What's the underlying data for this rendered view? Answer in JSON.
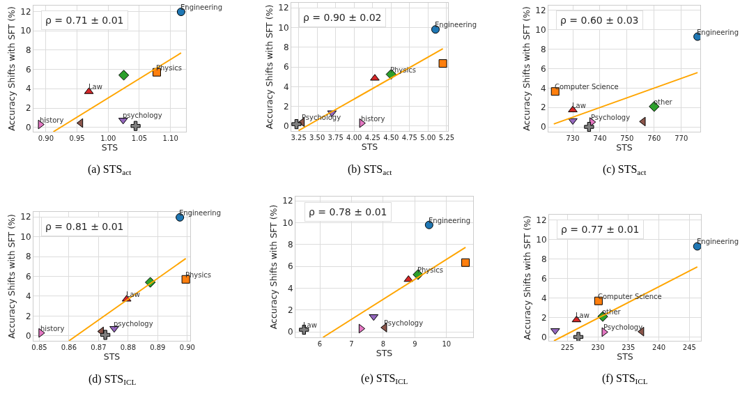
{
  "chart_data": [
    {
      "type": "scatter",
      "title": "(a) STS$_{act}$",
      "xlabel": "STS",
      "ylabel": "Accuracy Shifts with SFT (%)",
      "grid": true,
      "xlim": [
        0.88,
        1.125
      ],
      "xticks": [
        {
          "value": 0.9,
          "label": "0.90"
        },
        {
          "value": 0.95,
          "label": "0.95"
        },
        {
          "value": 1.0,
          "label": "1.00"
        },
        {
          "value": 1.05,
          "label": "1.05"
        },
        {
          "value": 1.1,
          "label": "1.10"
        }
      ],
      "ylim": [
        -0.45,
        12.6
      ],
      "yticks": [
        0,
        2,
        4,
        6,
        8,
        10,
        12
      ],
      "series": [
        {
          "color": "#1f77b4",
          "marker": "circle",
          "x": [
            1.117
          ],
          "values": [
            11.95
          ]
        },
        {
          "color": "#ff7f0e",
          "marker": "square",
          "x": [
            1.078
          ],
          "values": [
            5.7
          ]
        },
        {
          "color": "#2ca02c",
          "marker": "diamond",
          "x": [
            1.025
          ],
          "values": [
            5.4
          ]
        },
        {
          "color": "#d62728",
          "marker": "triangle",
          "x": [
            0.969
          ],
          "values": [
            3.7
          ]
        },
        {
          "color": "#9467bd",
          "marker": "triangle-down",
          "x": [
            1.024
          ],
          "values": [
            0.75
          ]
        },
        {
          "color": "#8c564b",
          "marker": "triangle-left",
          "x": [
            0.956
          ],
          "values": [
            0.45
          ]
        },
        {
          "color": "#e377c2",
          "marker": "triangle-right",
          "x": [
            0.891
          ],
          "values": [
            0.3
          ]
        },
        {
          "color": "#7f7f7f",
          "marker": "cross",
          "x": [
            1.044
          ],
          "values": [
            0.15
          ]
        },
        {
          "type": "line",
          "color": "#ffa500",
          "marker": "none",
          "x": [
            0.912,
            1.117
          ],
          "values": [
            -0.45,
            7.7
          ]
        }
      ],
      "annotations": [
        "ρ = 0.71 ± 0.01",
        {
          "text": "Engineering",
          "x": 1.117,
          "y": 11.95
        },
        {
          "text": "Physics",
          "x": 1.078,
          "y": 5.7
        },
        {
          "text": "Law",
          "x": 0.969,
          "y": 3.7
        },
        {
          "text": "psychology",
          "x": 1.024,
          "y": 0.75
        },
        {
          "text": "history",
          "x": 0.891,
          "y": 0.3
        }
      ]
    },
    {
      "type": "scatter",
      "title": "(b) STS$_{act}$",
      "xlabel": "STS",
      "ylabel": "Accuracy Shifts with SFT (%)",
      "grid": true,
      "xlim": [
        3.15,
        5.27
      ],
      "xticks": [
        {
          "value": 3.25,
          "label": "3.25"
        },
        {
          "value": 3.5,
          "label": "3.50"
        },
        {
          "value": 3.75,
          "label": "3.75"
        },
        {
          "value": 4.0,
          "label": "4.00"
        },
        {
          "value": 4.25,
          "label": "4.25"
        },
        {
          "value": 4.5,
          "label": "4.50"
        },
        {
          "value": 4.75,
          "label": "4.75"
        },
        {
          "value": 5.0,
          "label": "5.00"
        },
        {
          "value": 5.25,
          "label": "5.25"
        }
      ],
      "ylim": [
        -0.5,
        12.5
      ],
      "yticks": [
        0,
        2,
        4,
        6,
        8,
        10,
        12
      ],
      "series": [
        {
          "color": "#1f77b4",
          "marker": "circle",
          "x": [
            5.1
          ],
          "values": [
            9.8
          ]
        },
        {
          "color": "#ff7f0e",
          "marker": "square",
          "x": [
            5.2
          ],
          "values": [
            6.35
          ]
        },
        {
          "color": "#2ca02c",
          "marker": "diamond",
          "x": [
            4.5
          ],
          "values": [
            5.25
          ]
        },
        {
          "color": "#d62728",
          "marker": "triangle",
          "x": [
            4.28
          ],
          "values": [
            4.85
          ]
        },
        {
          "color": "#9467bd",
          "marker": "triangle-down",
          "x": [
            3.7
          ],
          "values": [
            1.35
          ]
        },
        {
          "color": "#8c564b",
          "marker": "triangle-left",
          "x": [
            3.3
          ],
          "values": [
            0.4
          ]
        },
        {
          "color": "#e377c2",
          "marker": "triangle-right",
          "x": [
            4.1
          ],
          "values": [
            0.3
          ]
        },
        {
          "color": "#7f7f7f",
          "marker": "cross",
          "x": [
            3.22
          ],
          "values": [
            0.2
          ]
        },
        {
          "type": "line",
          "color": "#ffa500",
          "marker": "none",
          "x": [
            3.25,
            5.2
          ],
          "values": [
            -0.45,
            7.85
          ]
        }
      ],
      "annotations": [
        "ρ = 0.90 ± 0.02",
        {
          "text": "Engineering",
          "x": 5.1,
          "y": 9.8
        },
        {
          "text": "Physics",
          "x": 4.5,
          "y": 5.25
        },
        {
          "text": "Psychology",
          "x": 3.3,
          "y": 0.4
        },
        {
          "text": "history",
          "x": 4.1,
          "y": 0.3
        }
      ]
    },
    {
      "type": "scatter",
      "title": "(c) STS$_{act}$",
      "xlabel": "STS",
      "ylabel": "Accuracy Shifts with SFT (%)",
      "grid": true,
      "xlim": [
        721,
        777
      ],
      "xticks": [
        730,
        740,
        750,
        760,
        770
      ],
      "ylim": [
        -0.5,
        12.5
      ],
      "yticks": [
        0,
        2,
        4,
        6,
        8,
        10,
        12
      ],
      "series": [
        {
          "color": "#1f77b4",
          "marker": "circle",
          "x": [
            776
          ],
          "values": [
            9.3
          ]
        },
        {
          "color": "#ff7f0e",
          "marker": "square",
          "x": [
            723.5
          ],
          "values": [
            3.65
          ]
        },
        {
          "color": "#2ca02c",
          "marker": "diamond",
          "x": [
            760
          ],
          "values": [
            2.1
          ]
        },
        {
          "color": "#d62728",
          "marker": "triangle",
          "x": [
            730
          ],
          "values": [
            1.75
          ]
        },
        {
          "color": "#9467bd",
          "marker": "triangle-down",
          "x": [
            730
          ],
          "values": [
            0.65
          ]
        },
        {
          "color": "#8c564b",
          "marker": "triangle-left",
          "x": [
            756
          ],
          "values": [
            0.55
          ]
        },
        {
          "color": "#e377c2",
          "marker": "triangle-right",
          "x": [
            737
          ],
          "values": [
            0.5
          ]
        },
        {
          "color": "#7f7f7f",
          "marker": "cross",
          "x": [
            736
          ],
          "values": [
            0.0
          ]
        },
        {
          "type": "line",
          "color": "#ffa500",
          "marker": "none",
          "x": [
            723,
            776
          ],
          "values": [
            0.3,
            5.6
          ]
        }
      ],
      "annotations": [
        "ρ = 0.60 ± 0.03",
        {
          "text": "Engineering",
          "x": 776,
          "y": 9.3
        },
        {
          "text": "Computer Science",
          "x": 723.5,
          "y": 3.65
        },
        {
          "text": "Law",
          "x": 730,
          "y": 1.75
        },
        {
          "text": "other",
          "x": 760,
          "y": 2.1
        },
        {
          "text": "Psychology",
          "x": 737,
          "y": 0.5
        }
      ]
    },
    {
      "type": "scatter",
      "title": "(d) STS$_{ICL}$",
      "xlabel": "STS",
      "ylabel": "Accuracy Shifts with SFT (%)",
      "grid": true,
      "xlim": [
        0.848,
        0.901
      ],
      "xticks": [
        {
          "value": 0.85,
          "label": "0.85"
        },
        {
          "value": 0.86,
          "label": "0.86"
        },
        {
          "value": 0.87,
          "label": "0.87"
        },
        {
          "value": 0.88,
          "label": "0.88"
        },
        {
          "value": 0.89,
          "label": "0.89"
        },
        {
          "value": 0.9,
          "label": "0.90"
        }
      ],
      "ylim": [
        -0.5,
        12.5
      ],
      "yticks": [
        0,
        2,
        4,
        6,
        8,
        10,
        12
      ],
      "series": [
        {
          "color": "#1f77b4",
          "marker": "circle",
          "x": [
            0.8975
          ],
          "values": [
            11.95
          ]
        },
        {
          "color": "#ff7f0e",
          "marker": "square",
          "x": [
            0.8995
          ],
          "values": [
            5.7
          ]
        },
        {
          "color": "#2ca02c",
          "marker": "diamond",
          "x": [
            0.8875
          ],
          "values": [
            5.4
          ]
        },
        {
          "color": "#d62728",
          "marker": "triangle",
          "x": [
            0.8795
          ],
          "values": [
            3.7
          ]
        },
        {
          "color": "#9467bd",
          "marker": "triangle-down",
          "x": [
            0.8753
          ],
          "values": [
            0.75
          ]
        },
        {
          "color": "#8c564b",
          "marker": "triangle-left",
          "x": [
            0.871
          ],
          "values": [
            0.45
          ]
        },
        {
          "color": "#e377c2",
          "marker": "triangle-right",
          "x": [
            0.8505
          ],
          "values": [
            0.3
          ]
        },
        {
          "color": "#7f7f7f",
          "marker": "cross",
          "x": [
            0.8723
          ],
          "values": [
            0.1
          ]
        },
        {
          "type": "line",
          "color": "#ffa500",
          "marker": "none",
          "x": [
            0.86,
            0.8995
          ],
          "values": [
            -0.5,
            7.8
          ]
        }
      ],
      "annotations": [
        "ρ = 0.81 ± 0.01",
        {
          "text": "Engineering",
          "x": 0.8975,
          "y": 11.95
        },
        {
          "text": "Physics",
          "x": 0.8995,
          "y": 5.7
        },
        {
          "text": "Law",
          "x": 0.8795,
          "y": 3.7
        },
        {
          "text": "psychology",
          "x": 0.8753,
          "y": 0.75
        },
        {
          "text": "history",
          "x": 0.8505,
          "y": 0.3
        }
      ]
    },
    {
      "type": "scatter",
      "title": "(e) STS$_{ICL}$",
      "xlabel": "STS",
      "ylabel": "Accuracy Shifts with SFT (%)",
      "grid": true,
      "xlim": [
        5.23,
        10.84
      ],
      "xticks": [
        6,
        7,
        8,
        9,
        10
      ],
      "ylim": [
        -0.5,
        12.4
      ],
      "yticks": [
        0,
        2,
        4,
        6,
        8,
        10,
        12
      ],
      "series": [
        {
          "color": "#1f77b4",
          "marker": "circle",
          "x": [
            9.45
          ],
          "values": [
            9.8
          ]
        },
        {
          "color": "#ff7f0e",
          "marker": "square",
          "x": [
            10.6
          ],
          "values": [
            6.35
          ]
        },
        {
          "color": "#2ca02c",
          "marker": "diamond",
          "x": [
            9.1
          ],
          "values": [
            5.25
          ]
        },
        {
          "color": "#d62728",
          "marker": "triangle",
          "x": [
            8.8
          ],
          "values": [
            4.8
          ]
        },
        {
          "color": "#9467bd",
          "marker": "triangle-down",
          "x": [
            7.7
          ],
          "values": [
            1.4
          ]
        },
        {
          "color": "#8c564b",
          "marker": "triangle-left",
          "x": [
            8.05
          ],
          "values": [
            0.4
          ]
        },
        {
          "color": "#e377c2",
          "marker": "triangle-right",
          "x": [
            7.3
          ],
          "values": [
            0.3
          ]
        },
        {
          "color": "#7f7f7f",
          "marker": "cross",
          "x": [
            5.5
          ],
          "values": [
            0.2
          ]
        },
        {
          "type": "line",
          "color": "#ffa500",
          "marker": "none",
          "x": [
            6.1,
            10.6
          ],
          "values": [
            -0.5,
            7.75
          ]
        }
      ],
      "annotations": [
        "ρ = 0.78 ± 0.01",
        {
          "text": "Engineering",
          "x": 9.45,
          "y": 9.8
        },
        {
          "text": "Physics",
          "x": 9.1,
          "y": 5.25
        },
        {
          "text": "Psychology",
          "x": 8.05,
          "y": 0.4
        },
        {
          "text": "Law",
          "x": 5.5,
          "y": 0.2
        }
      ]
    },
    {
      "type": "scatter",
      "title": "(f) STS$_{ICL}$",
      "xlabel": "STS",
      "ylabel": "Accuracy Shifts with SFT (%)",
      "grid": true,
      "xlim": [
        222,
        246.9
      ],
      "xticks": [
        225,
        230,
        235,
        240,
        245
      ],
      "ylim": [
        -0.4,
        12.55
      ],
      "yticks": [
        0,
        2,
        4,
        6,
        8,
        10,
        12
      ],
      "series": [
        {
          "color": "#1f77b4",
          "marker": "circle",
          "x": [
            246.3
          ],
          "values": [
            9.3
          ]
        },
        {
          "color": "#ff7f0e",
          "marker": "square",
          "x": [
            230.1
          ],
          "values": [
            3.7
          ]
        },
        {
          "color": "#2ca02c",
          "marker": "diamond",
          "x": [
            230.8
          ],
          "values": [
            2.1
          ]
        },
        {
          "color": "#d62728",
          "marker": "triangle",
          "x": [
            226.5
          ],
          "values": [
            1.75
          ]
        },
        {
          "color": "#9467bd",
          "marker": "triangle-down",
          "x": [
            223
          ],
          "values": [
            0.65
          ]
        },
        {
          "color": "#8c564b",
          "marker": "triangle-left",
          "x": [
            237.2
          ],
          "values": [
            0.55
          ]
        },
        {
          "color": "#e377c2",
          "marker": "triangle-right",
          "x": [
            231
          ],
          "values": [
            0.5
          ]
        },
        {
          "color": "#7f7f7f",
          "marker": "cross",
          "x": [
            226.8
          ],
          "values": [
            0.0
          ]
        },
        {
          "type": "line",
          "color": "#ffa500",
          "marker": "none",
          "x": [
            222.8,
            246.3
          ],
          "values": [
            -0.4,
            7.2
          ]
        }
      ],
      "annotations": [
        "ρ = 0.77 ± 0.01",
        {
          "text": "Engineering",
          "x": 246.3,
          "y": 9.3
        },
        {
          "text": "Computer Science",
          "x": 230.1,
          "y": 3.7
        },
        {
          "text": "other",
          "x": 230.8,
          "y": 2.1
        },
        {
          "text": "Law",
          "x": 226.5,
          "y": 1.75
        },
        {
          "text": "Psychology",
          "x": 231,
          "y": 0.5
        }
      ]
    }
  ]
}
